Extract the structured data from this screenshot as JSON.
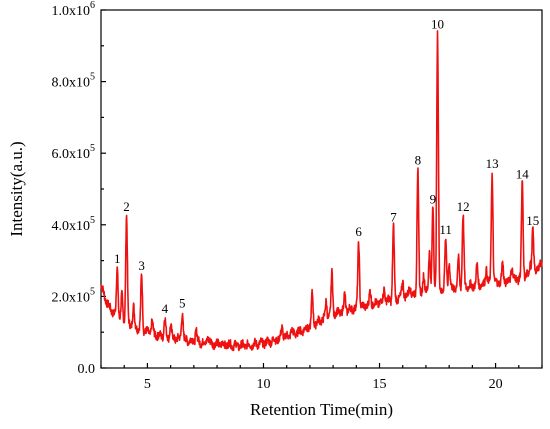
{
  "chart_data": {
    "type": "line",
    "xlabel": "Retention Time(min)",
    "ylabel": "Intensity(a.u.)",
    "xlim": [
      3,
      22
    ],
    "ylim": [
      0,
      1000000
    ],
    "x_ticks": [
      5,
      10,
      15,
      20
    ],
    "x_tick_labels": [
      "5",
      "10",
      "15",
      "20"
    ],
    "y_ticks": [
      {
        "value": 0,
        "mantissa": "0.0",
        "exp": ""
      },
      {
        "value": 200000,
        "mantissa": "2.0x10",
        "exp": "5"
      },
      {
        "value": 400000,
        "mantissa": "4.0x10",
        "exp": "5"
      },
      {
        "value": 600000,
        "mantissa": "6.0x10",
        "exp": "5"
      },
      {
        "value": 800000,
        "mantissa": "8.0x10",
        "exp": "5"
      },
      {
        "value": 1000000,
        "mantissa": "1.0x10",
        "exp": "6"
      }
    ],
    "line_color": "#ee1111",
    "grid": false,
    "baseline": [
      [
        3.0,
        230000
      ],
      [
        3.3,
        175000
      ],
      [
        3.6,
        150000
      ],
      [
        4.0,
        130000
      ],
      [
        4.5,
        115000
      ],
      [
        5.0,
        100000
      ],
      [
        5.5,
        90000
      ],
      [
        6.0,
        85000
      ],
      [
        6.5,
        80000
      ],
      [
        7.0,
        75000
      ],
      [
        7.5,
        70000
      ],
      [
        8.0,
        68000
      ],
      [
        8.5,
        65000
      ],
      [
        9.0,
        62000
      ],
      [
        9.5,
        65000
      ],
      [
        10.0,
        70000
      ],
      [
        10.5,
        78000
      ],
      [
        11.0,
        88000
      ],
      [
        11.5,
        100000
      ],
      [
        12.0,
        115000
      ],
      [
        12.5,
        135000
      ],
      [
        13.0,
        150000
      ],
      [
        13.5,
        160000
      ],
      [
        14.0,
        168000
      ],
      [
        14.5,
        175000
      ],
      [
        15.0,
        182000
      ],
      [
        15.5,
        190000
      ],
      [
        16.0,
        198000
      ],
      [
        16.5,
        205000
      ],
      [
        17.0,
        212000
      ],
      [
        17.5,
        218000
      ],
      [
        18.0,
        222000
      ],
      [
        18.5,
        226000
      ],
      [
        19.0,
        230000
      ],
      [
        19.5,
        234000
      ],
      [
        20.0,
        238000
      ],
      [
        20.5,
        243000
      ],
      [
        21.0,
        250000
      ],
      [
        21.5,
        262000
      ],
      [
        22.0,
        290000
      ]
    ],
    "minor_peaks": [
      [
        3.9,
        200000
      ],
      [
        4.4,
        170000
      ],
      [
        5.2,
        130000
      ],
      [
        6.0,
        120000
      ],
      [
        7.1,
        105000
      ],
      [
        7.6,
        88000
      ],
      [
        10.8,
        115000
      ],
      [
        11.2,
        105000
      ],
      [
        12.1,
        205000
      ],
      [
        12.7,
        185000
      ],
      [
        12.95,
        265000
      ],
      [
        13.5,
        205000
      ],
      [
        14.6,
        215000
      ],
      [
        15.2,
        225000
      ],
      [
        16.0,
        245000
      ],
      [
        16.3,
        235000
      ],
      [
        16.9,
        265000
      ],
      [
        17.15,
        330000
      ],
      [
        18.0,
        295000
      ],
      [
        18.4,
        305000
      ],
      [
        19.2,
        285000
      ],
      [
        19.6,
        280000
      ],
      [
        20.3,
        290000
      ],
      [
        20.7,
        285000
      ],
      [
        21.5,
        300000
      ]
    ],
    "peaks": [
      {
        "label": "1",
        "x": 3.7,
        "y": 280000
      },
      {
        "label": "2",
        "x": 4.1,
        "y": 425000
      },
      {
        "label": "3",
        "x": 4.75,
        "y": 260000
      },
      {
        "label": "4",
        "x": 5.75,
        "y": 140000
      },
      {
        "label": "5",
        "x": 6.5,
        "y": 155000
      },
      {
        "label": "6",
        "x": 14.1,
        "y": 355000
      },
      {
        "label": "7",
        "x": 15.6,
        "y": 395000
      },
      {
        "label": "8",
        "x": 16.65,
        "y": 555000
      },
      {
        "label": "9",
        "x": 17.3,
        "y": 445000
      },
      {
        "label": "10",
        "x": 17.5,
        "y": 935000
      },
      {
        "label": "11",
        "x": 17.85,
        "y": 360000
      },
      {
        "label": "12",
        "x": 18.6,
        "y": 425000
      },
      {
        "label": "13",
        "x": 19.85,
        "y": 545000
      },
      {
        "label": "14",
        "x": 21.15,
        "y": 515000
      },
      {
        "label": "15",
        "x": 21.6,
        "y": 385000
      }
    ]
  }
}
